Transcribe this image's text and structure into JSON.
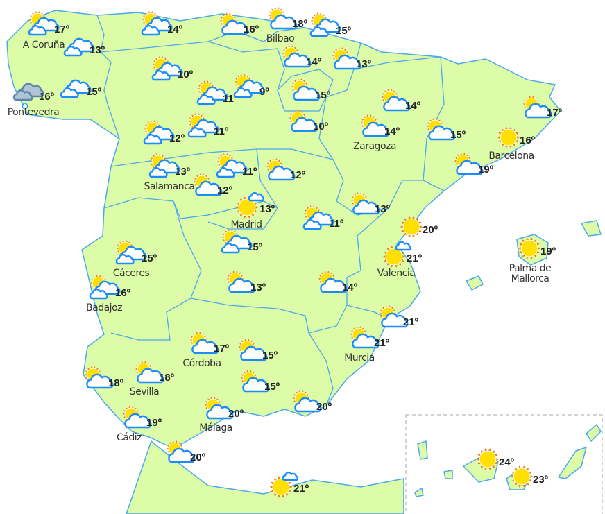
{
  "colors": {
    "land": "#dcfca8",
    "border": "#4aa8ee",
    "cloud_stroke": "#1a8cff",
    "sun": "#ffe000",
    "sun_rays": "#f07a10",
    "rain_cloud": "#b0c4d4"
  },
  "stations": [
    {
      "temp": "17º",
      "icon": "sun-clouds",
      "label": "A Coruña"
    },
    {
      "temp": "13º",
      "icon": "clouds",
      "label": ""
    },
    {
      "temp": "16º",
      "icon": "rain",
      "label": "Pontevedra"
    },
    {
      "temp": "15º",
      "icon": "clouds",
      "label": ""
    },
    {
      "temp": "14º",
      "icon": "sun-clouds",
      "label": ""
    },
    {
      "temp": "16º",
      "icon": "sun-cloud",
      "label": ""
    },
    {
      "temp": "18º",
      "icon": "sun-cloud",
      "label": "Bilbao"
    },
    {
      "temp": "15º",
      "icon": "sun-clouds",
      "label": ""
    },
    {
      "temp": "14º",
      "icon": "sun-cloud",
      "label": ""
    },
    {
      "temp": "13º",
      "icon": "sun-cloud",
      "label": ""
    },
    {
      "temp": "10º",
      "icon": "sun-clouds",
      "label": ""
    },
    {
      "temp": "11º",
      "icon": "sun-clouds",
      "label": ""
    },
    {
      "temp": "9º",
      "icon": "sun-clouds",
      "label": ""
    },
    {
      "temp": "15º",
      "icon": "sun-cloud",
      "label": ""
    },
    {
      "temp": "10º",
      "icon": "sun-cloud",
      "label": ""
    },
    {
      "temp": "14º",
      "icon": "sun-cloud",
      "label": ""
    },
    {
      "temp": "14º",
      "icon": "sun-cloud",
      "label": "Zaragoza"
    },
    {
      "temp": "15º",
      "icon": "sun-cloud",
      "label": ""
    },
    {
      "temp": "17º",
      "icon": "sun-cloud",
      "label": ""
    },
    {
      "temp": "16º",
      "icon": "sun",
      "label": "Barcelona"
    },
    {
      "temp": "19º",
      "icon": "sun-cloud",
      "label": ""
    },
    {
      "temp": "12º",
      "icon": "sun-clouds",
      "label": ""
    },
    {
      "temp": "11º",
      "icon": "sun-clouds",
      "label": ""
    },
    {
      "temp": "13º",
      "icon": "sun-clouds",
      "label": "Salamanca"
    },
    {
      "temp": "11º",
      "icon": "sun-clouds",
      "label": ""
    },
    {
      "temp": "12º",
      "icon": "sun-cloud",
      "label": ""
    },
    {
      "temp": "12º",
      "icon": "sun-cloud",
      "label": ""
    },
    {
      "temp": "13º",
      "icon": "sun-small-cloud",
      "label": "Madrid"
    },
    {
      "temp": "11º",
      "icon": "sun-clouds",
      "label": ""
    },
    {
      "temp": "13º",
      "icon": "sun-cloud",
      "label": ""
    },
    {
      "temp": "20º",
      "icon": "sun",
      "label": ""
    },
    {
      "temp": "21º",
      "icon": "sun-small-cloud",
      "label": "Valencia"
    },
    {
      "temp": "19º",
      "icon": "sun",
      "label": "Palma de\nMallorca"
    },
    {
      "temp": "15º",
      "icon": "sun-clouds",
      "label": ""
    },
    {
      "temp": "15º",
      "icon": "sun-clouds",
      "label": "Cáceres"
    },
    {
      "temp": "16º",
      "icon": "sun-clouds",
      "label": "Badajoz"
    },
    {
      "temp": "13º",
      "icon": "sun-cloud",
      "label": ""
    },
    {
      "temp": "14º",
      "icon": "sun-cloud",
      "label": ""
    },
    {
      "temp": "21º",
      "icon": "sun-cloud",
      "label": ""
    },
    {
      "temp": "21º",
      "icon": "sun-cloud",
      "label": "Murcia"
    },
    {
      "temp": "17º",
      "icon": "sun-cloud",
      "label": "Córdoba"
    },
    {
      "temp": "15º",
      "icon": "sun-cloud",
      "label": ""
    },
    {
      "temp": "18º",
      "icon": "sun-cloud",
      "label": ""
    },
    {
      "temp": "18º",
      "icon": "sun-cloud",
      "label": "Sevilla"
    },
    {
      "temp": "15º",
      "icon": "sun-cloud",
      "label": ""
    },
    {
      "temp": "20º",
      "icon": "sun-cloud",
      "label": "Málaga"
    },
    {
      "temp": "20º",
      "icon": "sun-cloud",
      "label": ""
    },
    {
      "temp": "19º",
      "icon": "sun-cloud",
      "label": "Cádiz"
    },
    {
      "temp": "20º",
      "icon": "sun-cloud",
      "label": ""
    },
    {
      "temp": "21º",
      "icon": "sun-small-cloud",
      "label": ""
    },
    {
      "temp": "24º",
      "icon": "sun",
      "label": ""
    },
    {
      "temp": "23º",
      "icon": "sun",
      "label": ""
    }
  ]
}
